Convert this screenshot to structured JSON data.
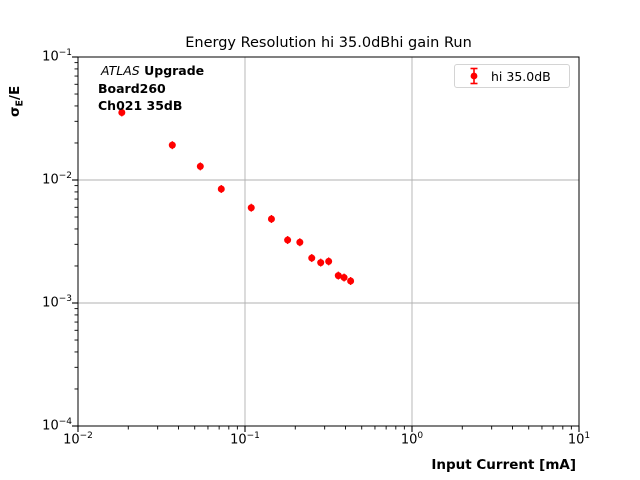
{
  "chart_data": {
    "type": "scatter",
    "title": "Energy Resolution hi 35.0dBhi gain Run",
    "xlabel": "Input Current [mA]",
    "ylabel": "σE/E",
    "ylabel_parts": {
      "sigma": "σ",
      "sub": "E",
      "rest": "/E"
    },
    "x_scale": "log",
    "y_scale": "log",
    "xlim": [
      0.01,
      10
    ],
    "ylim": [
      0.0001,
      0.1
    ],
    "x_tick_exponents": [
      -2,
      -1,
      0,
      1
    ],
    "y_tick_exponents": [
      -1,
      -2,
      -3,
      -4
    ],
    "grid": true,
    "legend_position": "upper right",
    "series": [
      {
        "name": "hi 35.0dB",
        "color": "#ff0000",
        "marker": "circle-errorbar",
        "x": [
          0.0183,
          0.0367,
          0.054,
          0.0721,
          0.109,
          0.144,
          0.18,
          0.213,
          0.251,
          0.284,
          0.317,
          0.362,
          0.392,
          0.429
        ],
        "y": [
          0.0354,
          0.0192,
          0.0129,
          0.00845,
          0.00595,
          0.00482,
          0.00325,
          0.00312,
          0.00232,
          0.00213,
          0.00218,
          0.00167,
          0.00161,
          0.00151
        ]
      }
    ],
    "colors": {
      "marker": "#ff0000",
      "grid": "#b0b0b0",
      "spine": "#000000",
      "legend_border": "#d4d4d4",
      "background": "#ffffff"
    }
  },
  "annotation": {
    "line1_italic": "ATLAS",
    "line1_bold": "Upgrade",
    "line2": "Board260",
    "line3": "Ch021 35dB"
  },
  "legend": {
    "label": "hi 35.0dB"
  }
}
